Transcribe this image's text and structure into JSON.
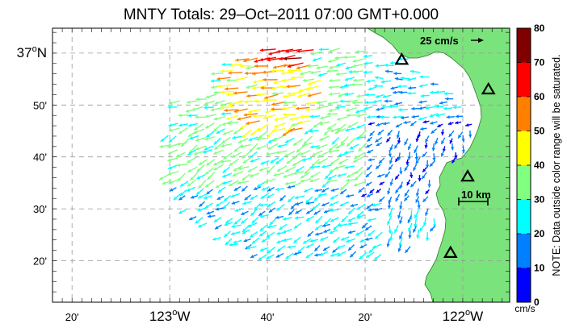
{
  "title": "MNTY Totals: 29–Oct–2011 07:00 GMT+0.000",
  "map": {
    "lon_range": [
      -123.4,
      -121.84
    ],
    "lat_range": [
      36.2,
      37.08
    ],
    "lon_ticks": [
      {
        "lon": -123.3333,
        "label": "20'",
        "major": false
      },
      {
        "lon": -123.0,
        "label": "123",
        "major": true
      },
      {
        "lon": -122.6667,
        "label": "40'",
        "major": false
      },
      {
        "lon": -122.3333,
        "label": "20'",
        "major": false
      },
      {
        "lon": -122.0,
        "label": "122",
        "major": true
      }
    ],
    "lat_ticks": [
      {
        "lat": 37.0,
        "label": "37",
        "major": true
      },
      {
        "lat": 36.8333,
        "label": "50'",
        "major": false
      },
      {
        "lat": 36.6667,
        "label": "40'",
        "major": false
      },
      {
        "lat": 36.5,
        "label": "30'",
        "major": false
      },
      {
        "lat": 36.3333,
        "label": "20'",
        "major": false
      }
    ],
    "deg_symbol": "o",
    "lon_hemisphere": "W",
    "lat_hemisphere": "N",
    "land_color": "#7be37b",
    "ocean_color": "#ffffff",
    "gridline_color": "#999999",
    "reference_vector_label": "25 cm/s",
    "scale_bar_label": "10 km",
    "stations": [
      {
        "lon": -122.2083,
        "lat": 36.9783
      },
      {
        "lon": -121.9125,
        "lat": 36.8833
      },
      {
        "lon": -121.9833,
        "lat": 36.6033
      },
      {
        "lon": -122.0417,
        "lat": 36.3583
      }
    ]
  },
  "colorbar": {
    "ticks": [
      "0",
      "10",
      "20",
      "30",
      "40",
      "50",
      "60",
      "70",
      "80"
    ],
    "bins": [
      {
        "min": 0,
        "max": 10,
        "color": "#0000ff"
      },
      {
        "min": 10,
        "max": 20,
        "color": "#0080ff"
      },
      {
        "min": 20,
        "max": 30,
        "color": "#00ffff"
      },
      {
        "min": 30,
        "max": 40,
        "color": "#80ff80"
      },
      {
        "min": 40,
        "max": 50,
        "color": "#ffff00"
      },
      {
        "min": 50,
        "max": 60,
        "color": "#ff8000"
      },
      {
        "min": 60,
        "max": 70,
        "color": "#ff0000"
      },
      {
        "min": 70,
        "max": 80,
        "color": "#800000"
      }
    ],
    "unit": "cm/s",
    "note": "NOTE: Data outside color range will be saturated."
  }
}
